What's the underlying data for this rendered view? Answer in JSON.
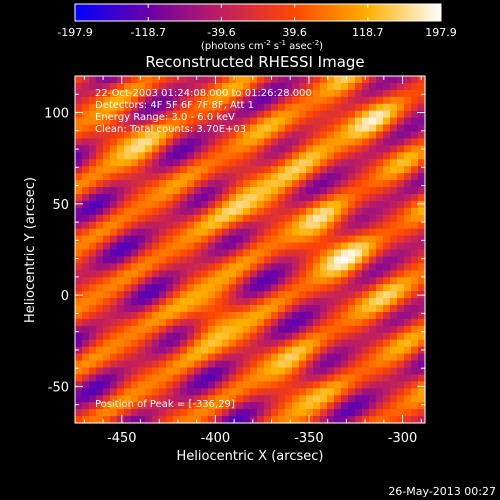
{
  "chart_data": {
    "type": "heatmap",
    "title": "Reconstructed RHESSI Image",
    "xlabel": "Heliocentric X (arcsec)",
    "ylabel": "Heliocentric Y (arcsec)",
    "xlim": [
      -475,
      -288
    ],
    "ylim": [
      -70,
      120
    ],
    "x_ticks": [
      "-450",
      "-400",
      "-350",
      "-300"
    ],
    "x_tick_values": [
      -450,
      -400,
      -350,
      -300
    ],
    "y_ticks": [
      "100",
      "50",
      "0",
      "-50"
    ],
    "y_tick_values": [
      100,
      50,
      0,
      -50
    ],
    "annotations": [
      "22-Oct-2003 01:24:08.000 to 01:26:28.000",
      "Detectors: 4F 5F 6F 7F 8F, Att 1",
      "Energy Range: 3.0 - 6.0 keV",
      "Clean:  Total counts: 3.70E+03"
    ],
    "peak_label": "Position of Peak = [-336,29]",
    "peak_position": [
      -336,
      29
    ],
    "colorbar": {
      "ticks": [
        "-197.9",
        "-118.7",
        "-39.6",
        "39.6",
        "118.7",
        "197.9"
      ],
      "tick_values": [
        -197.9,
        -118.7,
        -39.6,
        39.6,
        118.7,
        197.9
      ],
      "min": -197.9,
      "max": 197.9,
      "unit_label": "(photons cm",
      "unit_exp1": "-2",
      "unit_mid1": " s",
      "unit_exp2": "-1",
      "unit_mid2": " asec",
      "unit_exp3": "-2",
      "unit_end": ")",
      "colormap": [
        "#0000ff",
        "#6a00a8",
        "#c01e60",
        "#ff4800",
        "#ffb000",
        "#ffffff"
      ]
    },
    "grid": false,
    "pattern_angle_deg": -57,
    "pattern_wavelength": 28,
    "hotspots": [
      {
        "x": -336,
        "y": 29,
        "amp": 200
      },
      {
        "x": -385,
        "y": 50,
        "amp": 180
      },
      {
        "x": -405,
        "y": -15,
        "amp": 170
      },
      {
        "x": -350,
        "y": 85,
        "amp": 150
      },
      {
        "x": -445,
        "y": 85,
        "amp": 130
      },
      {
        "x": -355,
        "y": -45,
        "amp": 130
      },
      {
        "x": -320,
        "y": 100,
        "amp": 110
      },
      {
        "x": -300,
        "y": 0,
        "amp": 110
      }
    ]
  },
  "footer": {
    "timestamp": "26-May-2013 00:27"
  }
}
